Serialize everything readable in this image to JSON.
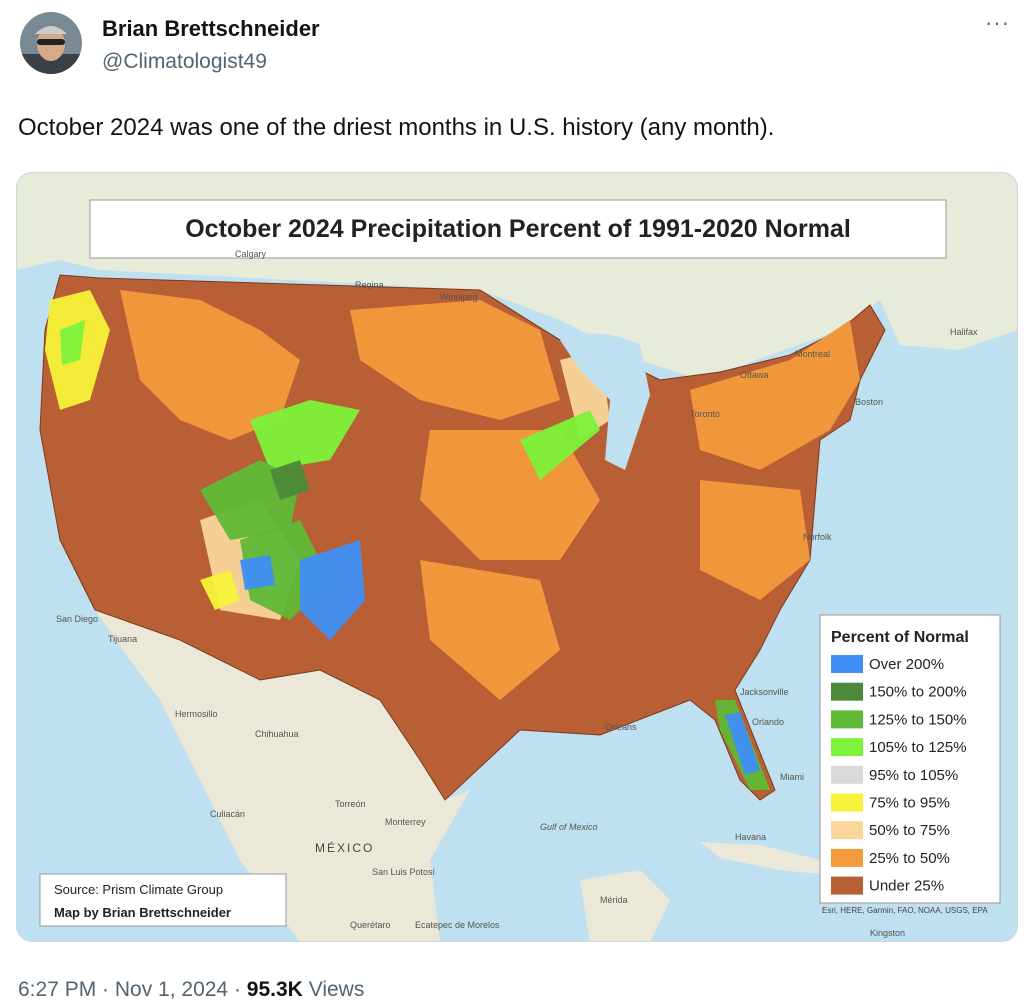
{
  "author": {
    "name": "Brian Brettschneider",
    "handle": "@Climatologist49"
  },
  "tweet": {
    "text": "October 2024 was one of the driest months in U.S. history (any month)."
  },
  "map": {
    "title": "October 2024 Precipitation Percent of 1991-2020 Normal",
    "legend": {
      "title": "Percent of Normal",
      "items": [
        {
          "label": "Over 200%",
          "color": "#3f8ef5"
        },
        {
          "label": "150% to 200%",
          "color": "#4c8a3a"
        },
        {
          "label": "125% to 150%",
          "color": "#5fb836"
        },
        {
          "label": "105% to 125%",
          "color": "#7cf23a"
        },
        {
          "label": "95% to 105%",
          "color": "#d9d9d9"
        },
        {
          "label": "75% to 95%",
          "color": "#f7f23a"
        },
        {
          "label": "50% to 75%",
          "color": "#f9d59a"
        },
        {
          "label": "25% to 50%",
          "color": "#f29a3c"
        },
        {
          "label": "Under 25%",
          "color": "#b95f35"
        }
      ]
    },
    "source": "Source: Prism Climate Group",
    "credit": "Map by Brian Brettschneider",
    "attribution": "Esri, HERE, Garmin, FAO, NOAA, USGS, EPA",
    "labels": [
      "Calgary",
      "Regina",
      "Winnipeg",
      "Montreal",
      "Ottawa",
      "Toronto",
      "Halifax",
      "San Diego",
      "Tijuana",
      "Hermosillo",
      "Chihuahua",
      "Torreón",
      "Culiacán",
      "Monterrey",
      "MÉXICO",
      "San Luis Potosí",
      "Querétaro",
      "Ecatepec de Morelos",
      "Gulf of Mexico",
      "Havana",
      "Jacksonville",
      "Orlando",
      "Miami",
      "Orleans",
      "Mérida",
      "Norfolk",
      "Boston",
      "Kingston"
    ]
  },
  "meta": {
    "timestamp": "6:27 PM · Nov 1, 2024 ·",
    "views_count": "95.3K",
    "views_label": "Views"
  }
}
